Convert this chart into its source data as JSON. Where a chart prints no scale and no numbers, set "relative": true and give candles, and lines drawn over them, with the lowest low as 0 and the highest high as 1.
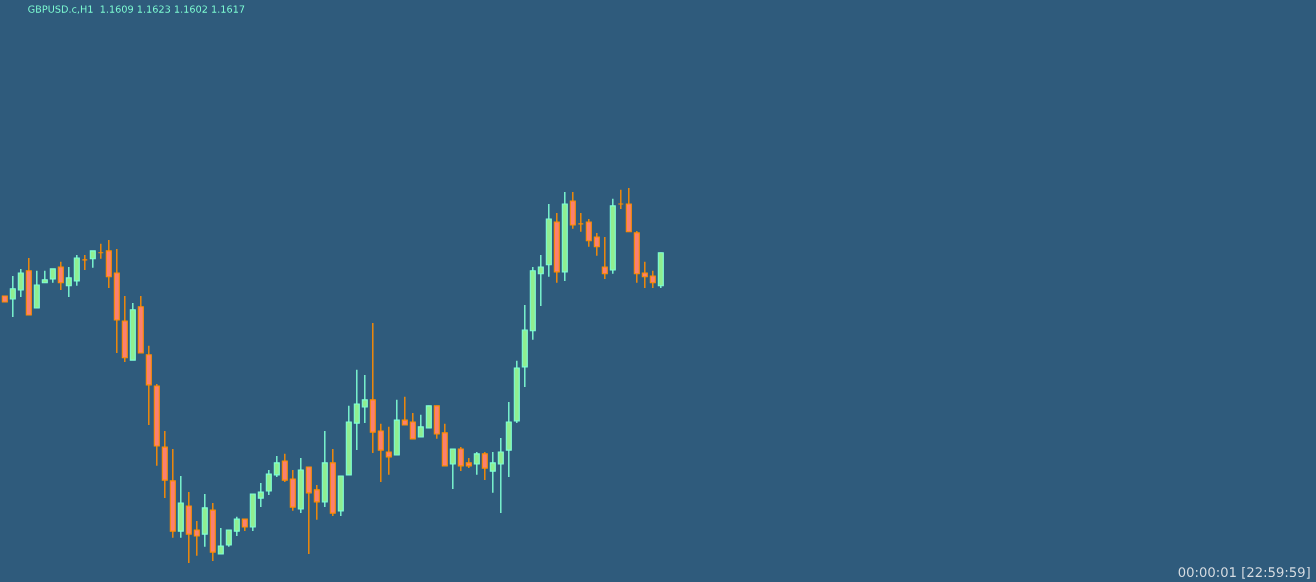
{
  "chart_data": {
    "type": "candlestick",
    "title": "GBPUSD.c,H1  1.1609 1.1623 1.1602 1.1617",
    "annotations": [
      "00:00:01 [22:59:59]"
    ],
    "relative": true,
    "categories": [
      null,
      null,
      null,
      null,
      null,
      null,
      null,
      null,
      null,
      null,
      null,
      null,
      null,
      null,
      null,
      null,
      null,
      null,
      null,
      null,
      null,
      null,
      null,
      null,
      null,
      null,
      null,
      null,
      null,
      null,
      null,
      null,
      null,
      null,
      null,
      null,
      null,
      null,
      null,
      null,
      null,
      null,
      null,
      null,
      null,
      null,
      null,
      null,
      null,
      null,
      null,
      null,
      null,
      null,
      null,
      null,
      null,
      null,
      null,
      null,
      null,
      null,
      null,
      null,
      null,
      null,
      null,
      null,
      null,
      null,
      null,
      null,
      null,
      null,
      null,
      null,
      null,
      null,
      null,
      null,
      null,
      null,
      null
    ],
    "ohlc": [
      [
        0.712,
        0.712,
        0.696,
        0.696
      ],
      [
        0.704,
        0.765,
        0.656,
        0.731
      ],
      [
        0.728,
        0.784,
        0.709,
        0.773
      ],
      [
        0.779,
        0.813,
        0.661,
        0.661
      ],
      [
        0.68,
        0.779,
        0.68,
        0.741
      ],
      [
        0.747,
        0.779,
        0.747,
        0.755
      ],
      [
        0.757,
        0.784,
        0.747,
        0.784
      ],
      [
        0.789,
        0.803,
        0.728,
        0.747
      ],
      [
        0.739,
        0.789,
        0.709,
        0.76
      ],
      [
        0.752,
        0.821,
        0.739,
        0.813
      ],
      [
        0.808,
        0.821,
        0.781,
        0.808
      ],
      [
        0.811,
        0.832,
        0.787,
        0.832
      ],
      [
        0.827,
        0.851,
        0.811,
        0.827
      ],
      [
        0.832,
        0.861,
        0.733,
        0.763
      ],
      [
        0.773,
        0.837,
        0.56,
        0.648
      ],
      [
        0.645,
        0.712,
        0.536,
        0.547
      ],
      [
        0.541,
        0.693,
        0.541,
        0.675
      ],
      [
        0.683,
        0.712,
        0.56,
        0.56
      ],
      [
        0.555,
        0.579,
        0.368,
        0.475
      ],
      [
        0.472,
        0.477,
        0.259,
        0.312
      ],
      [
        0.309,
        0.352,
        0.173,
        0.221
      ],
      [
        0.219,
        0.304,
        0.067,
        0.085
      ],
      [
        0.085,
        0.232,
        0.067,
        0.16
      ],
      [
        0.152,
        0.189,
        0,
        0.077
      ],
      [
        0.088,
        0.112,
        0.019,
        0.072
      ],
      [
        0.077,
        0.184,
        0.043,
        0.147
      ],
      [
        0.141,
        0.16,
        0.005,
        0.029
      ],
      [
        0.024,
        0.093,
        0.024,
        0.045
      ],
      [
        0.048,
        0.088,
        0.043,
        0.088
      ],
      [
        0.085,
        0.123,
        0.072,
        0.117
      ],
      [
        0.117,
        0.117,
        0.085,
        0.096
      ],
      [
        0.096,
        0.184,
        0.085,
        0.184
      ],
      [
        0.173,
        0.213,
        0.149,
        0.189
      ],
      [
        0.192,
        0.248,
        0.181,
        0.237
      ],
      [
        0.235,
        0.285,
        0.229,
        0.267
      ],
      [
        0.272,
        0.291,
        0.216,
        0.221
      ],
      [
        0.224,
        0.248,
        0.139,
        0.149
      ],
      [
        0.144,
        0.28,
        0.133,
        0.248
      ],
      [
        0.256,
        0.256,
        0.024,
        0.187
      ],
      [
        0.195,
        0.208,
        0.115,
        0.163
      ],
      [
        0.163,
        0.352,
        0.149,
        0.267
      ],
      [
        0.267,
        0.304,
        0.125,
        0.133
      ],
      [
        0.139,
        0.232,
        0.125,
        0.232
      ],
      [
        0.235,
        0.419,
        0.235,
        0.376
      ],
      [
        0.373,
        0.515,
        0.301,
        0.424
      ],
      [
        0.416,
        0.501,
        0.373,
        0.435
      ],
      [
        0.435,
        0.64,
        0.293,
        0.349
      ],
      [
        0.352,
        0.371,
        0.216,
        0.301
      ],
      [
        0.296,
        0.363,
        0.235,
        0.283
      ],
      [
        0.288,
        0.435,
        0.288,
        0.381
      ],
      [
        0.381,
        0.443,
        0.368,
        0.368
      ],
      [
        0.376,
        0.4,
        0.331,
        0.331
      ],
      [
        0.336,
        0.395,
        0.336,
        0.363
      ],
      [
        0.36,
        0.419,
        0.36,
        0.419
      ],
      [
        0.419,
        0.419,
        0.331,
        0.344
      ],
      [
        0.347,
        0.371,
        0.259,
        0.259
      ],
      [
        0.264,
        0.304,
        0.197,
        0.304
      ],
      [
        0.304,
        0.309,
        0.245,
        0.259
      ],
      [
        0.267,
        0.28,
        0.253,
        0.259
      ],
      [
        0.264,
        0.296,
        0.235,
        0.291
      ],
      [
        0.291,
        0.296,
        0.221,
        0.253
      ],
      [
        0.245,
        0.296,
        0.187,
        0.267
      ],
      [
        0.264,
        0.333,
        0.133,
        0.296
      ],
      [
        0.301,
        0.429,
        0.229,
        0.376
      ],
      [
        0.379,
        0.539,
        0.373,
        0.52
      ],
      [
        0.523,
        0.688,
        0.469,
        0.621
      ],
      [
        0.619,
        0.789,
        0.595,
        0.779
      ],
      [
        0.771,
        0.821,
        0.685,
        0.789
      ],
      [
        0.795,
        0.957,
        0.763,
        0.917
      ],
      [
        0.909,
        0.933,
        0.747,
        0.776
      ],
      [
        0.776,
        0.989,
        0.752,
        0.957
      ],
      [
        0.965,
        0.989,
        0.891,
        0.901
      ],
      [
        0.904,
        0.933,
        0.883,
        0.904
      ],
      [
        0.909,
        0.917,
        0.843,
        0.859
      ],
      [
        0.869,
        0.88,
        0.819,
        0.843
      ],
      [
        0.789,
        0.869,
        0.757,
        0.771
      ],
      [
        0.781,
        0.971,
        0.771,
        0.952
      ],
      [
        0.957,
        0.995,
        0.944,
        0.957
      ],
      [
        0.957,
        1,
        0.883,
        0.883
      ],
      [
        0.88,
        0.885,
        0.747,
        0.771
      ],
      [
        0.773,
        0.803,
        0.733,
        0.763
      ],
      [
        0.765,
        0.779,
        0.733,
        0.747
      ],
      [
        0.739,
        0.827,
        0.733,
        0.827
      ]
    ],
    "colors": [
      "#fa8072",
      "#90ee90",
      "#90ee90",
      "#fa8072",
      "#90ee90",
      "#90ee90",
      "#90ee90",
      "#fa8072",
      "#90ee90",
      "#90ee90",
      "#ff8c00",
      "#90ee90",
      "#ff8c00",
      "#fa8072",
      "#fa8072",
      "#fa8072",
      "#90ee90",
      "#fa8072",
      "#fa8072",
      "#fa8072",
      "#fa8072",
      "#fa8072",
      "#90ee90",
      "#fa8072",
      "#fa8072",
      "#90ee90",
      "#fa8072",
      "#90ee90",
      "#90ee90",
      "#90ee90",
      "#fa8072",
      "#90ee90",
      "#90ee90",
      "#90ee90",
      "#90ee90",
      "#fa8072",
      "#fa8072",
      "#90ee90",
      "#fa8072",
      "#fa8072",
      "#90ee90",
      "#fa8072",
      "#90ee90",
      "#90ee90",
      "#90ee90",
      "#90ee90",
      "#fa8072",
      "#fa8072",
      "#fa8072",
      "#90ee90",
      "#fa8072",
      "#fa8072",
      "#90ee90",
      "#90ee90",
      "#fa8072",
      "#fa8072",
      "#90ee90",
      "#fa8072",
      "#fa8072",
      "#90ee90",
      "#fa8072",
      "#90ee90",
      "#90ee90",
      "#90ee90",
      "#90ee90",
      "#90ee90",
      "#90ee90",
      "#90ee90",
      "#90ee90",
      "#fa8072",
      "#90ee90",
      "#fa8072",
      "#ff8c00",
      "#fa8072",
      "#fa8072",
      "#fa8072",
      "#90ee90",
      "#ff8c00",
      "#fa8072",
      "#fa8072",
      "#fa8072",
      "#fa8072",
      "#90ee90"
    ]
  }
}
